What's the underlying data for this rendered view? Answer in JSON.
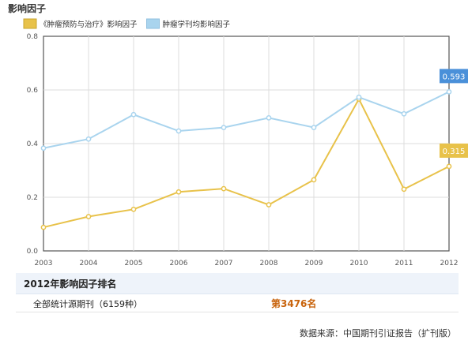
{
  "page": {
    "title": "影响因子"
  },
  "chart_data": {
    "type": "line",
    "title": "",
    "xlabel": "",
    "ylabel": "",
    "x": [
      "2003",
      "2004",
      "2005",
      "2006",
      "2007",
      "2008",
      "2009",
      "2010",
      "2011",
      "2012"
    ],
    "ylim": [
      0,
      0.8
    ],
    "yticks": [
      "0.0",
      "0.2",
      "0.4",
      "0.6",
      "0.8"
    ],
    "grid": true,
    "legend_position": "top-left",
    "series": [
      {
        "name": "《肿瘤预防与治疗》影响因子",
        "color": "#e8c24a",
        "values": [
          0.088,
          0.128,
          0.155,
          0.22,
          0.232,
          0.172,
          0.265,
          0.566,
          0.23,
          0.315
        ],
        "end_label": "0.315"
      },
      {
        "name": "肿瘤学刊均影响因子",
        "color": "#a9d4ee",
        "values": [
          0.383,
          0.417,
          0.508,
          0.447,
          0.46,
          0.496,
          0.46,
          0.573,
          0.511,
          0.593
        ],
        "end_label": "0.593"
      }
    ]
  },
  "ranking": {
    "title": "2012年影响因子排名",
    "rows": [
      {
        "label": "全部统计源期刊（6159种）",
        "value": "第3476名"
      }
    ]
  },
  "footer": {
    "source": "数据来源：中国期刊引证报告（扩刊版）"
  },
  "colors": {
    "end_label_blue": "#4a90d9",
    "end_label_yellow": "#e8c24a"
  }
}
